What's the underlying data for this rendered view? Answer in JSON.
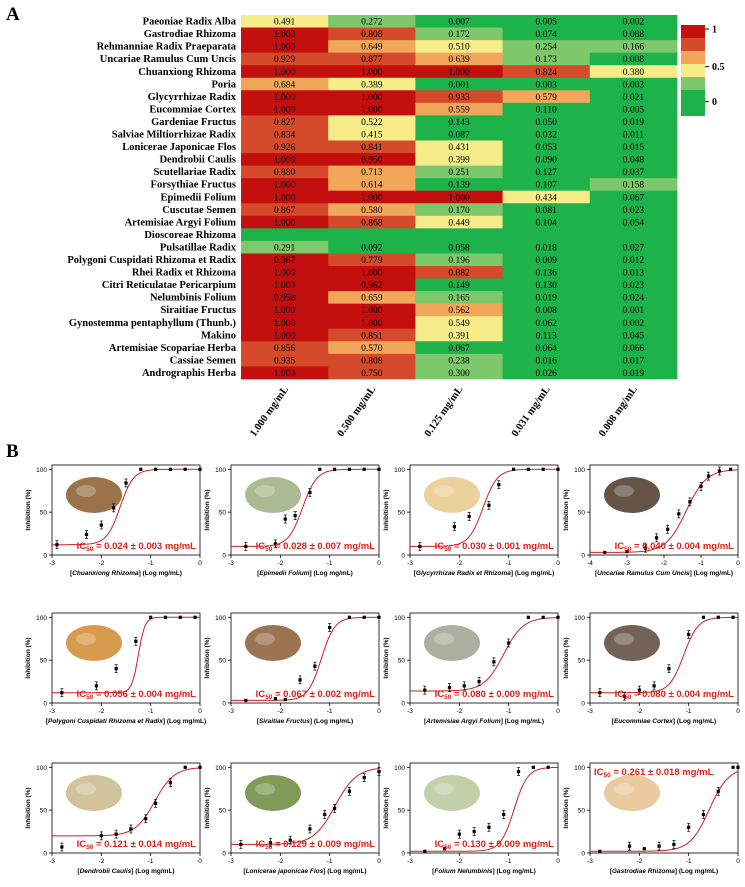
{
  "panel_labels": [
    "A",
    "B"
  ],
  "colors": {
    "red": "#c40f0f",
    "high": "#d54a2a",
    "orange": "#f2a65a",
    "yellow": "#f7ec8a",
    "lightgreen": "#7cc86b",
    "green": "#1eb24b",
    "curve": "#d31f1f",
    "ic50_text": "#e0201b"
  },
  "chart_data": [
    {
      "type": "heatmap",
      "title": "",
      "columns": [
        "1.000 mg/mL",
        "0.500 mg/mL",
        "0.125 mg/mL",
        "0.031 mg/mL",
        "0.008 mg/mL"
      ],
      "rows": [
        "Paeoniae Radix Alba",
        "Gastrodiae Rhizoma",
        "Rehmanniae Radix Praeparata",
        "Uncariae Ramulus Cum Uncis",
        "Chuanxiong Rhizoma",
        "Poria",
        "Glycyrrhizae Radix",
        "Eucommiae Cortex",
        "Gardeniae Fructus",
        "Salviae Miltiorrhizae Radix",
        "Lonicerae Japonicae Flos",
        "Dendrobii Caulis",
        "Scutellariae Radix",
        "Forsythiae Fructus",
        "Epimedii Folium",
        "Cuscutae Semen",
        "Artemisiae Argyi Folium",
        "Dioscoreae Rhizoma",
        "Pulsatillae Radix",
        "Polygoni Cuspidati Rhizoma et Radix",
        "Rhei Radix et Rhizoma",
        "Citri Reticulatae Pericarpium",
        "Nelumbinis Folium",
        "Siraitiae Fructus",
        "Gynostemma pentaphyllum (Thunb.)",
        "Makino",
        "Artemisiae Scopariae Herba",
        "Cassiae Semen",
        "Andrographis Herba"
      ],
      "values": [
        [
          "0.491",
          "0.272",
          "0.007",
          "0.005",
          "0.002"
        ],
        [
          "1.000",
          "0.808",
          "0.172",
          "0.074",
          "0.088"
        ],
        [
          "1.000",
          "0.649",
          "0.510",
          "0.254",
          "0.166"
        ],
        [
          "0.929",
          "0.877",
          "0.639",
          "0.173",
          "0.008"
        ],
        [
          "1.000",
          "1.000",
          "1.000",
          "0.824",
          "0.380"
        ],
        [
          "0.684",
          "0.389",
          "0.001",
          "0.003",
          "0.003"
        ],
        [
          "1.000",
          "1.000",
          "0.933",
          "0.579",
          "0.021"
        ],
        [
          "1.000",
          "1.000",
          "0.559",
          "0.110",
          "0.005"
        ],
        [
          "0.827",
          "0.522",
          "0.143",
          "0.050",
          "0.019"
        ],
        [
          "0.834",
          "0.415",
          "0.087",
          "0.032",
          "0.011"
        ],
        [
          "0.926",
          "0.841",
          "0.431",
          "0.053",
          "0.015"
        ],
        [
          "1.000",
          "0.950",
          "0.399",
          "0.090",
          "0.048"
        ],
        [
          "0.880",
          "0.713",
          "0.251",
          "0.127",
          "0.037"
        ],
        [
          "1.000",
          "0.614",
          "0.139",
          "0.107",
          "0.158"
        ],
        [
          "1.000",
          "1.000",
          "1.000",
          "0.434",
          "0.067"
        ],
        [
          "0.867",
          "0.580",
          "0.170",
          "0.081",
          "0.023"
        ],
        [
          "1.000",
          "0.868",
          "0.449",
          "0.104",
          "0.054"
        ],
        [
          "",
          "",
          "",
          "",
          ""
        ],
        [
          "0.291",
          "0.092",
          "0.058",
          "0.018",
          "0.027"
        ],
        [
          "0.967",
          "0.779",
          "0.196",
          "0.009",
          "0.012"
        ],
        [
          "1.000",
          "1.000",
          "0.882",
          "0.136",
          "0.013"
        ],
        [
          "1.000",
          "0.962",
          "0.149",
          "0.130",
          "0.023"
        ],
        [
          "0.958",
          "0.659",
          "0.165",
          "0.019",
          "0.024"
        ],
        [
          "1.000",
          "1.000",
          "0.562",
          "0.008",
          "0.001"
        ],
        [
          "1.000",
          "1.000",
          "0.549",
          "0.062",
          "0.002"
        ],
        [
          "1.000",
          "0.851",
          "0.391",
          "0.113",
          "0.045"
        ],
        [
          "0.856",
          "0.570",
          "0.067",
          "0.064",
          "0.066"
        ],
        [
          "0.935",
          "0.808",
          "0.238",
          "0.016",
          "0.017"
        ],
        [
          "1.000",
          "0.750",
          "0.300",
          "0.026",
          "0.019"
        ]
      ],
      "colorbar": {
        "ticks": [
          "1",
          "0.5",
          "0"
        ],
        "range": [
          0,
          1
        ]
      }
    },
    {
      "type": "scatter",
      "subplots": [
        {
          "xlabel_herb": "Chuanxiong Rhizoma",
          "ic50": "0.024 ± 0.003 mg/mL",
          "log_ic50": -1.62,
          "bottom": 12,
          "hill": 3.2,
          "xmin": -3,
          "xmax": 0,
          "xticks": [
            "-3",
            "-2",
            "-1",
            "0"
          ],
          "points": [
            [
              -2.9,
              12
            ],
            [
              -2.3,
              24
            ],
            [
              -2.0,
              35
            ],
            [
              -1.75,
              55
            ],
            [
              -1.5,
              84
            ],
            [
              -1.2,
              100
            ],
            [
              -0.9,
              100
            ],
            [
              -0.6,
              100
            ],
            [
              -0.3,
              100
            ],
            [
              0,
              100
            ]
          ]
        },
        {
          "xlabel_herb": "Epimedii Folium",
          "ic50": "0.028 ± 0.007 mg/mL",
          "log_ic50": -1.55,
          "bottom": 10,
          "hill": 3.0,
          "xmin": -3,
          "xmax": 0,
          "xticks": [
            "-3",
            "-2",
            "-1",
            "0"
          ],
          "points": [
            [
              -2.7,
              10
            ],
            [
              -2.1,
              13
            ],
            [
              -1.9,
              42
            ],
            [
              -1.7,
              46
            ],
            [
              -1.4,
              73
            ],
            [
              -1.2,
              100
            ],
            [
              -0.9,
              100
            ],
            [
              -0.6,
              100
            ],
            [
              -0.3,
              100
            ],
            [
              0,
              100
            ]
          ]
        },
        {
          "xlabel_herb": "Glycyrrhizae Radix et Rhizoma",
          "ic50": "0.030 ± 0.001 mg/mL",
          "log_ic50": -1.52,
          "bottom": 10,
          "hill": 3.0,
          "xmin": -3,
          "xmax": 0,
          "xticks": [
            "-3",
            "-2",
            "-1",
            "0"
          ],
          "points": [
            [
              -2.8,
              10
            ],
            [
              -2.1,
              33
            ],
            [
              -1.8,
              45
            ],
            [
              -1.4,
              58
            ],
            [
              -1.2,
              82
            ],
            [
              -0.9,
              100
            ],
            [
              -0.6,
              100
            ],
            [
              -0.3,
              100
            ],
            [
              0,
              100
            ]
          ]
        },
        {
          "xlabel_herb": "Uncariae Ramulus Cum Uncis",
          "ic50": "0.040 ± 0.004 mg/mL",
          "log_ic50": -1.4,
          "bottom": 3,
          "hill": 1.6,
          "xmin": -4,
          "xmax": 0,
          "xticks": [
            "-4",
            "-3",
            "-2",
            "-1",
            "0"
          ],
          "points": [
            [
              -3.6,
              3
            ],
            [
              -3.0,
              4
            ],
            [
              -2.5,
              8
            ],
            [
              -2.2,
              20
            ],
            [
              -1.9,
              30
            ],
            [
              -1.6,
              48
            ],
            [
              -1.3,
              62
            ],
            [
              -1.0,
              80
            ],
            [
              -0.8,
              92
            ],
            [
              -0.5,
              98
            ],
            [
              -0.2,
              100
            ]
          ]
        },
        {
          "xlabel_herb": "Polygoni Cuspidati Rhizoma et Radix",
          "ic50": "0.056 ± 0.004 mg/mL",
          "log_ic50": -1.25,
          "bottom": 12,
          "hill": 6.5,
          "xmin": -3,
          "xmax": 0,
          "xticks": [
            "-3",
            "-2",
            "-1",
            "0"
          ],
          "points": [
            [
              -2.8,
              12
            ],
            [
              -2.1,
              20
            ],
            [
              -1.7,
              40
            ],
            [
              -1.3,
              72
            ],
            [
              -1.0,
              100
            ],
            [
              -0.7,
              100
            ],
            [
              -0.4,
              100
            ],
            [
              -0.1,
              100
            ]
          ]
        },
        {
          "xlabel_herb": "Siraitiae Fructus",
          "ic50": "0.067 ± 0.002 mg/mL",
          "log_ic50": -1.17,
          "bottom": 3,
          "hill": 3.2,
          "xmin": -3,
          "xmax": 0,
          "xticks": [
            "-3",
            "-2",
            "-1",
            "0"
          ],
          "points": [
            [
              -2.7,
              3
            ],
            [
              -2.1,
              5
            ],
            [
              -1.9,
              4
            ],
            [
              -1.6,
              27
            ],
            [
              -1.3,
              43
            ],
            [
              -1.0,
              88
            ],
            [
              -0.6,
              100
            ],
            [
              -0.3,
              100
            ],
            [
              0,
              100
            ]
          ]
        },
        {
          "xlabel_herb": "Artemisiae Argyi Folium",
          "ic50": "0.080 ± 0.009 mg/mL",
          "log_ic50": -1.1,
          "bottom": 14,
          "hill": 2.2,
          "xmin": -3,
          "xmax": 0,
          "xticks": [
            "-3",
            "-2",
            "-1",
            "0"
          ],
          "points": [
            [
              -2.7,
              15
            ],
            [
              -2.2,
              18
            ],
            [
              -1.9,
              20
            ],
            [
              -1.6,
              25
            ],
            [
              -1.3,
              48
            ],
            [
              -1.0,
              70
            ],
            [
              -0.6,
              100
            ],
            [
              -0.3,
              100
            ],
            [
              0,
              100
            ]
          ]
        },
        {
          "xlabel_herb": "Eucommiae Cortex",
          "ic50": "0.080 ± 0.004 mg/mL",
          "log_ic50": -1.1,
          "bottom": 12,
          "hill": 3.0,
          "xmin": -3,
          "xmax": 0,
          "xticks": [
            "-3",
            "-2",
            "-1",
            "0"
          ],
          "points": [
            [
              -2.8,
              12
            ],
            [
              -2.3,
              8
            ],
            [
              -2.0,
              15
            ],
            [
              -1.7,
              20
            ],
            [
              -1.4,
              40
            ],
            [
              -1.0,
              80
            ],
            [
              -0.7,
              100
            ],
            [
              -0.4,
              100
            ],
            [
              -0.1,
              100
            ]
          ]
        },
        {
          "xlabel_herb": "Dendrobii Caulis",
          "ic50": "0.121 ± 0.014 mg/mL",
          "log_ic50": -0.92,
          "bottom": 20,
          "hill": 2.2,
          "xmin": -3,
          "xmax": 0,
          "xticks": [
            "-3",
            "-2",
            "-1",
            "0"
          ],
          "points": [
            [
              -2.8,
              7
            ],
            [
              -2.0,
              20
            ],
            [
              -1.7,
              22
            ],
            [
              -1.4,
              28
            ],
            [
              -1.1,
              40
            ],
            [
              -0.9,
              58
            ],
            [
              -0.6,
              82
            ],
            [
              -0.3,
              100
            ],
            [
              0,
              100
            ]
          ]
        },
        {
          "xlabel_herb": "Lonicerae japonicae Flos",
          "ic50": "0.129 ± 0.009 mg/mL",
          "log_ic50": -0.89,
          "bottom": 10,
          "hill": 2.0,
          "xmin": -3,
          "xmax": 0,
          "xticks": [
            "-3",
            "-2",
            "-1",
            "0"
          ],
          "points": [
            [
              -2.8,
              10
            ],
            [
              -2.2,
              12
            ],
            [
              -1.8,
              15
            ],
            [
              -1.4,
              28
            ],
            [
              -1.1,
              45
            ],
            [
              -0.9,
              52
            ],
            [
              -0.6,
              72
            ],
            [
              -0.3,
              88
            ],
            [
              0,
              95
            ]
          ]
        },
        {
          "xlabel_herb": "Folium Nelumbinis",
          "ic50": "0.130 ± 0.009 mg/mL",
          "log_ic50": -0.89,
          "bottom": 2,
          "hill": 3.2,
          "xmin": -3,
          "xmax": 0,
          "xticks": [
            "-3",
            "-2",
            "-1",
            "0"
          ],
          "points": [
            [
              -2.7,
              2
            ],
            [
              -2.3,
              5
            ],
            [
              -2.0,
              22
            ],
            [
              -1.7,
              25
            ],
            [
              -1.4,
              30
            ],
            [
              -1.1,
              45
            ],
            [
              -0.8,
              95
            ],
            [
              -0.5,
              100
            ],
            [
              -0.2,
              100
            ]
          ]
        },
        {
          "xlabel_herb": "Gastrodiae Rhizoma",
          "ic50": "0.261 ± 0.018 mg/mL",
          "log_ic50": -0.58,
          "bottom": 2,
          "hill": 2.2,
          "xmin": -3,
          "xmax": 0,
          "xticks": [
            "-3",
            "-2",
            "-1",
            "0"
          ],
          "points": [
            [
              -2.8,
              2
            ],
            [
              -2.2,
              8
            ],
            [
              -1.9,
              5
            ],
            [
              -1.6,
              8
            ],
            [
              -1.3,
              10
            ],
            [
              -1.0,
              30
            ],
            [
              -0.7,
              45
            ],
            [
              -0.4,
              72
            ],
            [
              -0.1,
              100
            ],
            [
              0,
              100
            ]
          ]
        }
      ],
      "ylabel": "Inhibition (%)",
      "xlabel_suffix": "(Log mg/mL)",
      "yticks": [
        "0",
        "50",
        "100"
      ],
      "ylim": [
        0,
        105
      ]
    }
  ]
}
